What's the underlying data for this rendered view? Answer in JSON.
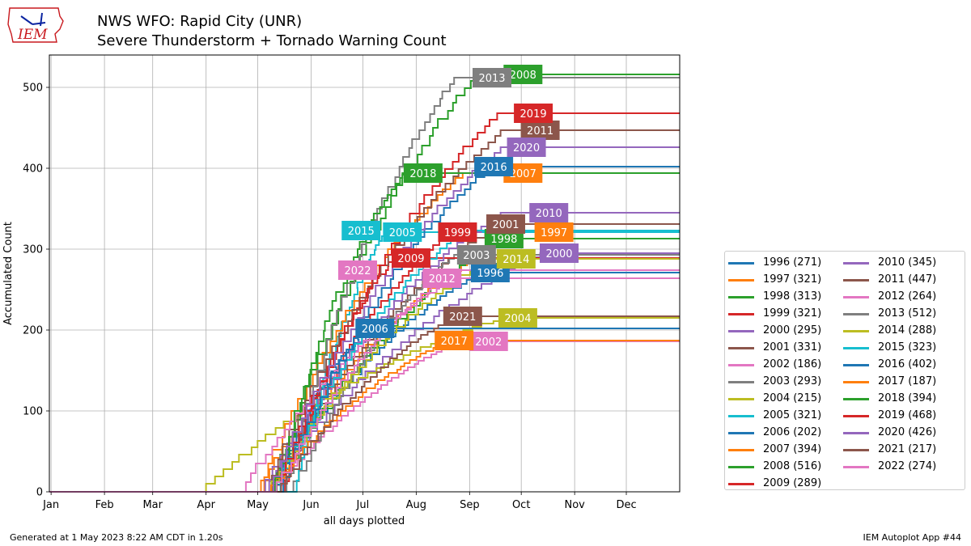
{
  "header": {
    "title_line1": "NWS WFO: Rapid City (UNR)",
    "title_line2": "Severe Thunderstorm + Tornado Warning Count",
    "logo_text": "IEM"
  },
  "footer": {
    "left": "Generated at 1 May 2023 8:22 AM CDT in 1.20s",
    "right": "IEM Autoplot App #44"
  },
  "colors": {
    "blue": "#1f77b4",
    "orange": "#ff7f0e",
    "green": "#2ca02c",
    "red": "#d62728",
    "purple": "#9467bd",
    "brown": "#8c564b",
    "pink": "#e377c2",
    "gray": "#7f7f7f",
    "olive": "#bcbd22",
    "cyan": "#17becf"
  },
  "chart_data": {
    "type": "line",
    "title": "NWS WFO: Rapid City (UNR) Severe Thunderstorm + Tornado Warning Count",
    "xlabel": "all days plotted",
    "ylabel": "Accumulated Count",
    "x_unit": "day of year",
    "xlim": [
      0,
      366
    ],
    "ylim": [
      0,
      540
    ],
    "x_ticks": [
      {
        "label": "Jan",
        "day": 1
      },
      {
        "label": "Feb",
        "day": 32
      },
      {
        "label": "Mar",
        "day": 60
      },
      {
        "label": "Apr",
        "day": 91
      },
      {
        "label": "May",
        "day": 121
      },
      {
        "label": "Jun",
        "day": 152
      },
      {
        "label": "Jul",
        "day": 182
      },
      {
        "label": "Aug",
        "day": 213
      },
      {
        "label": "Sep",
        "day": 244
      },
      {
        "label": "Oct",
        "day": 274
      },
      {
        "label": "Nov",
        "day": 305
      },
      {
        "label": "Dec",
        "day": 335
      }
    ],
    "y_ticks": [
      0,
      100,
      200,
      300,
      400,
      500
    ],
    "grid": true,
    "legend_position": "right",
    "legend_columns": 2,
    "series": [
      {
        "name": "1996 (271)",
        "year": "1996",
        "total": 271,
        "color": "#1f77b4",
        "start": 125,
        "end": 250,
        "label_day": 256,
        "label_y": 271
      },
      {
        "name": "1997 (321)",
        "year": "1997",
        "total": 321,
        "color": "#ff7f0e",
        "start": 118,
        "end": 270,
        "label_day": 293,
        "label_y": 321
      },
      {
        "name": "1998 (313)",
        "year": "1998",
        "total": 313,
        "color": "#2ca02c",
        "start": 128,
        "end": 262,
        "label_day": 264,
        "label_y": 313
      },
      {
        "name": "1999 (321)",
        "year": "1999",
        "total": 321,
        "color": "#d62728",
        "start": 130,
        "end": 232,
        "label_day": 237,
        "label_y": 321
      },
      {
        "name": "2000 (295)",
        "year": "2000",
        "total": 295,
        "color": "#9467bd",
        "start": 122,
        "end": 285,
        "label_day": 296,
        "label_y": 295
      },
      {
        "name": "2001 (331)",
        "year": "2001",
        "total": 331,
        "color": "#8c564b",
        "start": 126,
        "end": 260,
        "label_day": 265,
        "label_y": 331
      },
      {
        "name": "2002 (186)",
        "year": "2002",
        "total": 186,
        "color": "#e377c2",
        "start": 128,
        "end": 238,
        "label_day": 255,
        "label_y": 186
      },
      {
        "name": "2003 (293)",
        "year": "2003",
        "total": 293,
        "color": "#7f7f7f",
        "start": 140,
        "end": 235,
        "label_day": 248,
        "label_y": 293
      },
      {
        "name": "2004 (215)",
        "year": "2004",
        "total": 215,
        "color": "#bcbd22",
        "start": 85,
        "end": 262,
        "label_day": 272,
        "label_y": 215
      },
      {
        "name": "2005 (321)",
        "year": "2005",
        "total": 321,
        "color": "#17becf",
        "start": 142,
        "end": 195,
        "label_day": 205,
        "label_y": 321
      },
      {
        "name": "2006 (202)",
        "year": "2006",
        "total": 202,
        "color": "#1f77b4",
        "start": 130,
        "end": 185,
        "label_day": 189,
        "label_y": 202
      },
      {
        "name": "2007 (394)",
        "year": "2007",
        "total": 394,
        "color": "#ff7f0e",
        "start": 120,
        "end": 240,
        "label_day": 275,
        "label_y": 394
      },
      {
        "name": "2008 (516)",
        "year": "2008",
        "total": 516,
        "color": "#2ca02c",
        "start": 128,
        "end": 248,
        "label_day": 275,
        "label_y": 516
      },
      {
        "name": "2009 (289)",
        "year": "2009",
        "total": 289,
        "color": "#d62728",
        "start": 135,
        "end": 200,
        "label_day": 210,
        "label_y": 289
      },
      {
        "name": "2010 (345)",
        "year": "2010",
        "total": 345,
        "color": "#9467bd",
        "start": 122,
        "end": 262,
        "label_day": 290,
        "label_y": 345
      },
      {
        "name": "2011 (447)",
        "year": "2011",
        "total": 447,
        "color": "#8c564b",
        "start": 124,
        "end": 262,
        "label_day": 285,
        "label_y": 447
      },
      {
        "name": "2012 (264)",
        "year": "2012",
        "total": 264,
        "color": "#e377c2",
        "start": 110,
        "end": 235,
        "label_day": 228,
        "label_y": 264
      },
      {
        "name": "2013 (512)",
        "year": "2013",
        "total": 512,
        "color": "#7f7f7f",
        "start": 135,
        "end": 235,
        "label_day": 257,
        "label_y": 512
      },
      {
        "name": "2014 (288)",
        "year": "2014",
        "total": 288,
        "color": "#bcbd22",
        "start": 126,
        "end": 255,
        "label_day": 271,
        "label_y": 288
      },
      {
        "name": "2015 (323)",
        "year": "2015",
        "total": 323,
        "color": "#17becf",
        "start": 130,
        "end": 240,
        "label_day": 181,
        "label_y": 323
      },
      {
        "name": "2016 (402)",
        "year": "2016",
        "total": 402,
        "color": "#1f77b4",
        "start": 132,
        "end": 255,
        "label_day": 258,
        "label_y": 402
      },
      {
        "name": "2017 (187)",
        "year": "2017",
        "total": 187,
        "color": "#ff7f0e",
        "start": 126,
        "end": 232,
        "label_day": 235,
        "label_y": 187
      },
      {
        "name": "2018 (394)",
        "year": "2018",
        "total": 394,
        "color": "#2ca02c",
        "start": 130,
        "end": 205,
        "label_day": 217,
        "label_y": 394
      },
      {
        "name": "2019 (468)",
        "year": "2019",
        "total": 468,
        "color": "#d62728",
        "start": 130,
        "end": 260,
        "label_day": 281,
        "label_y": 468
      },
      {
        "name": "2020 (426)",
        "year": "2020",
        "total": 426,
        "color": "#9467bd",
        "start": 126,
        "end": 262,
        "label_day": 277,
        "label_y": 426
      },
      {
        "name": "2021 (217)",
        "year": "2021",
        "total": 217,
        "color": "#8c564b",
        "start": 132,
        "end": 235,
        "label_day": 240,
        "label_y": 217
      },
      {
        "name": "2022 (274)",
        "year": "2022",
        "total": 274,
        "color": "#e377c2",
        "start": 130,
        "end": 235,
        "label_day": 179,
        "label_y": 274
      }
    ]
  }
}
